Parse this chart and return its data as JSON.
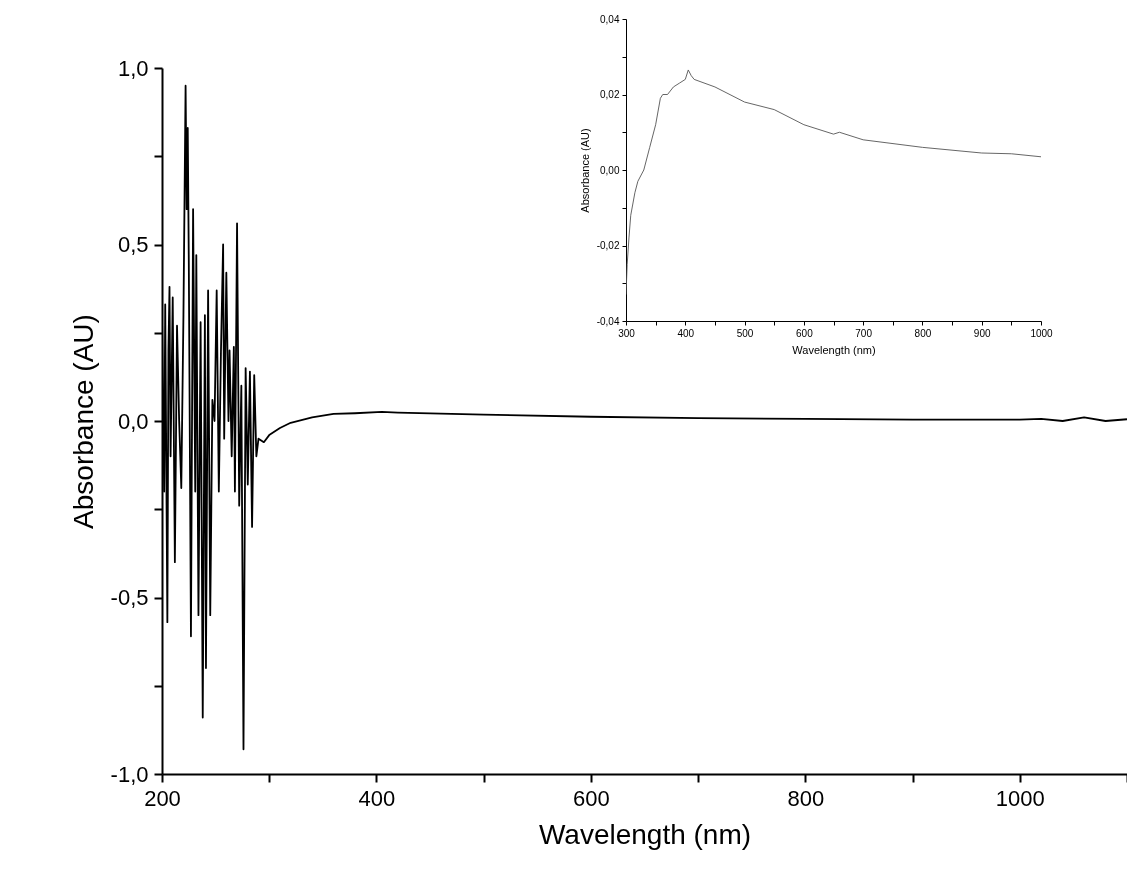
{
  "chart_data": [
    {
      "type": "line",
      "xlabel": "Wavelength (nm)",
      "ylabel": "Absorbance (AU)",
      "xlim": [
        200,
        1100
      ],
      "ylim": [
        -1,
        1
      ],
      "xticks": [
        200,
        {
          "value": 300,
          "label": null
        },
        400,
        {
          "value": 500,
          "label": null
        },
        600,
        {
          "value": 700,
          "label": null
        },
        800,
        {
          "value": 900,
          "label": null
        },
        1000,
        {
          "value": 1100,
          "label": null
        }
      ],
      "yticks": [
        {
          "value": -1,
          "label": "-1,0"
        },
        {
          "value": -0.75,
          "label": null
        },
        {
          "value": -0.5,
          "label": "-0,5"
        },
        {
          "value": -0.25,
          "label": null
        },
        {
          "value": 0,
          "label": "0,0"
        },
        {
          "value": 0.25,
          "label": null
        },
        {
          "value": 0.5,
          "label": "0,5"
        },
        {
          "value": 0.75,
          "label": null
        },
        {
          "value": 1,
          "label": "1,0"
        }
      ],
      "x": [
        200,
        202,
        203,
        205,
        206,
        207,
        208,
        210,
        212,
        214,
        216,
        218,
        220,
        222,
        223,
        224,
        225,
        227,
        229,
        231,
        232,
        234,
        236,
        238,
        240,
        241,
        243,
        245,
        247,
        249,
        251,
        253,
        255,
        257,
        258,
        260,
        262,
        263,
        265,
        267,
        268,
        270,
        272,
        274,
        276,
        278,
        280,
        282,
        284,
        286,
        288,
        290,
        295,
        300,
        310,
        320,
        340,
        360,
        380,
        405,
        420,
        500,
        600,
        700,
        800,
        900,
        1000,
        1020,
        1040,
        1060,
        1080,
        1100
      ],
      "series": [
        {
          "color": "#000000",
          "values": [
            0.3,
            -0.2,
            0.33,
            -0.57,
            0.2,
            0.38,
            -0.1,
            0.35,
            -0.4,
            0.27,
            0.0,
            -0.19,
            0.3,
            0.95,
            0.6,
            0.83,
            0.45,
            -0.61,
            0.6,
            -0.2,
            0.47,
            -0.55,
            0.28,
            -0.84,
            0.3,
            -0.7,
            0.37,
            -0.55,
            0.06,
            0.0,
            0.37,
            -0.2,
            0.2,
            0.5,
            -0.05,
            0.42,
            0.0,
            0.2,
            -0.1,
            0.21,
            -0.2,
            0.56,
            -0.24,
            0.1,
            -0.93,
            0.15,
            -0.18,
            0.14,
            -0.3,
            0.13,
            -0.1,
            -0.05,
            -0.06,
            -0.04,
            -0.02,
            -0.005,
            0.01,
            0.02,
            0.022,
            0.026,
            0.024,
            0.018,
            0.012,
            0.008,
            0.006,
            0.004,
            0.004,
            0.006,
            0.0,
            0.01,
            0.0,
            0.005
          ]
        }
      ]
    },
    {
      "type": "line",
      "xlabel": "Wavelength (nm)",
      "ylabel": "Absorbance (AU)",
      "xlim": [
        300,
        1000
      ],
      "ylim": [
        -0.04,
        0.04
      ],
      "xticks": [
        300,
        {
          "value": 350,
          "label": null
        },
        400,
        {
          "value": 450,
          "label": null
        },
        500,
        {
          "value": 550,
          "label": null
        },
        600,
        {
          "value": 650,
          "label": null
        },
        700,
        {
          "value": 750,
          "label": null
        },
        800,
        {
          "value": 850,
          "label": null
        },
        900,
        {
          "value": 950,
          "label": null
        },
        1000
      ],
      "yticks": [
        {
          "value": -0.04,
          "label": "-0,04"
        },
        {
          "value": -0.03,
          "label": null
        },
        {
          "value": -0.02,
          "label": "-0,02"
        },
        {
          "value": -0.01,
          "label": null
        },
        {
          "value": 0,
          "label": "0,00"
        },
        {
          "value": 0.01,
          "label": null
        },
        {
          "value": 0.02,
          "label": "0,02"
        },
        {
          "value": 0.03,
          "label": null
        },
        {
          "value": 0.04,
          "label": "0,04"
        }
      ],
      "x": [
        300,
        302,
        305,
        308,
        315,
        320,
        330,
        340,
        350,
        358,
        362,
        370,
        380,
        390,
        400,
        405,
        410,
        415,
        450,
        500,
        550,
        600,
        650,
        660,
        700,
        800,
        900,
        950,
        1000
      ],
      "series": [
        {
          "color": "#555555",
          "values": [
            -0.033,
            -0.025,
            -0.018,
            -0.012,
            -0.006,
            -0.003,
            0.0,
            0.006,
            0.012,
            0.019,
            0.02,
            0.02,
            0.022,
            0.023,
            0.024,
            0.0265,
            0.025,
            0.024,
            0.022,
            0.018,
            0.016,
            0.012,
            0.0095,
            0.01,
            0.008,
            0.006,
            0.0045,
            0.0043,
            0.0035
          ]
        }
      ]
    }
  ]
}
